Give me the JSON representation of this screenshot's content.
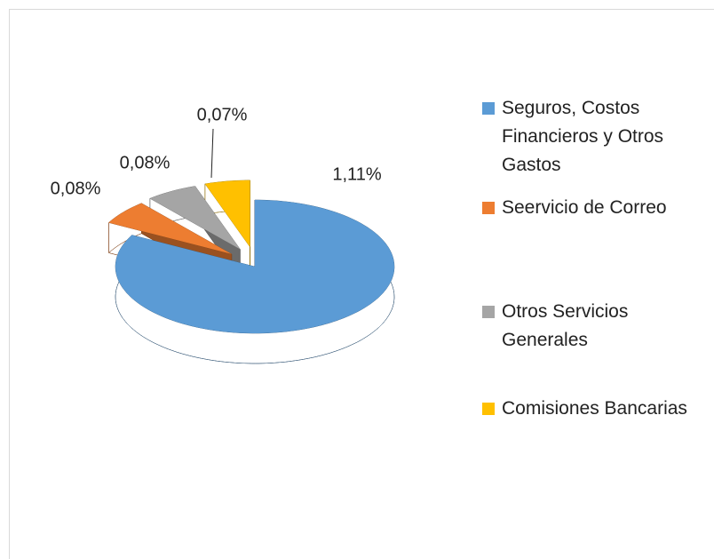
{
  "chart_data": {
    "type": "pie",
    "categories": [
      "Seguros, Costos Financieros y Otros Gastos",
      "Seervicio de Correo",
      "Otros Servicios Generales",
      "Comisiones Bancarias"
    ],
    "values": [
      1.11,
      0.08,
      0.08,
      0.07
    ],
    "value_labels": [
      "1,11%",
      "0,08%",
      "0,08%",
      "0,07%"
    ],
    "colors": [
      "#5b9bd5",
      "#ed7d31",
      "#a5a5a5",
      "#ffc000"
    ],
    "legend": "right"
  }
}
